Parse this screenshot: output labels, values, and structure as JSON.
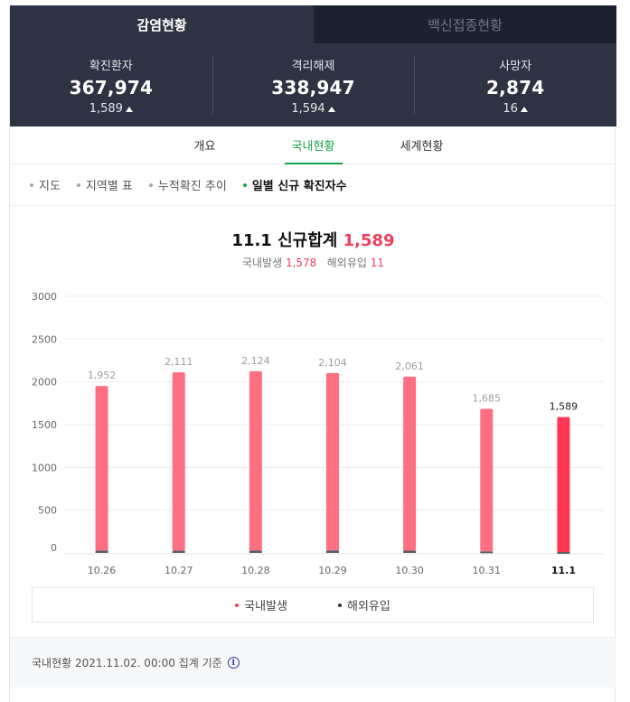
{
  "top_tabs": [
    {
      "label": "감염현황",
      "active": true
    },
    {
      "label": "백신접종현황",
      "active": false
    }
  ],
  "stats": [
    {
      "label": "확진환자",
      "value": "367,974",
      "delta": "1,589"
    },
    {
      "label": "격리해제",
      "value": "338,947",
      "delta": "1,594"
    },
    {
      "label": "사망자",
      "value": "2,874",
      "delta": "16"
    }
  ],
  "sub_tabs": [
    {
      "label": "개요",
      "active": false
    },
    {
      "label": "국내현황",
      "active": true
    },
    {
      "label": "세계현황",
      "active": false
    }
  ],
  "filters": [
    {
      "label": "지도",
      "active": false
    },
    {
      "label": "지역별 표",
      "active": false
    },
    {
      "label": "누적확진 추이",
      "active": false
    },
    {
      "label": "일별 신규 확진자수",
      "active": true
    }
  ],
  "chart_header": {
    "title_prefix": "11.1 신규합계",
    "title_value": "1,589",
    "domestic_label": "국내발생",
    "domestic_value": "1,578",
    "overseas_label": "해외유입",
    "overseas_value": "11"
  },
  "colors": {
    "domestic": "#ff6f82",
    "domestic_latest": "#ff3552",
    "overseas": "#5b5f66",
    "accent_green": "#16a34a",
    "accent_red": "#ef3f5a"
  },
  "chart_data": {
    "type": "bar",
    "stacked": true,
    "categories": [
      "10.26",
      "10.27",
      "10.28",
      "10.29",
      "10.30",
      "10.31",
      "11.1"
    ],
    "series": [
      {
        "name": "국내발생",
        "values": [
          1924,
          2085,
          2096,
          2075,
          2034,
          1667,
          1578
        ]
      },
      {
        "name": "해외유입",
        "values": [
          28,
          26,
          28,
          29,
          27,
          18,
          11
        ]
      }
    ],
    "totals": [
      1952,
      2111,
      2124,
      2104,
      2061,
      1685,
      1589
    ],
    "total_labels": [
      "1,952",
      "2,111",
      "2,124",
      "2,104",
      "2,061",
      "1,685",
      "1,589"
    ],
    "ylim": [
      0,
      3000
    ],
    "yticks": [
      0,
      500,
      1000,
      1500,
      2000,
      2500,
      3000
    ],
    "grid": true,
    "legend_position": "bottom"
  },
  "legend": [
    {
      "label": "국내발생",
      "color": "#ef3f5a"
    },
    {
      "label": "해외유입",
      "color": "#333333"
    }
  ],
  "footer": {
    "text": "국내현황 2021.11.02. 00:00 집계 기준",
    "info_glyph": "i"
  }
}
